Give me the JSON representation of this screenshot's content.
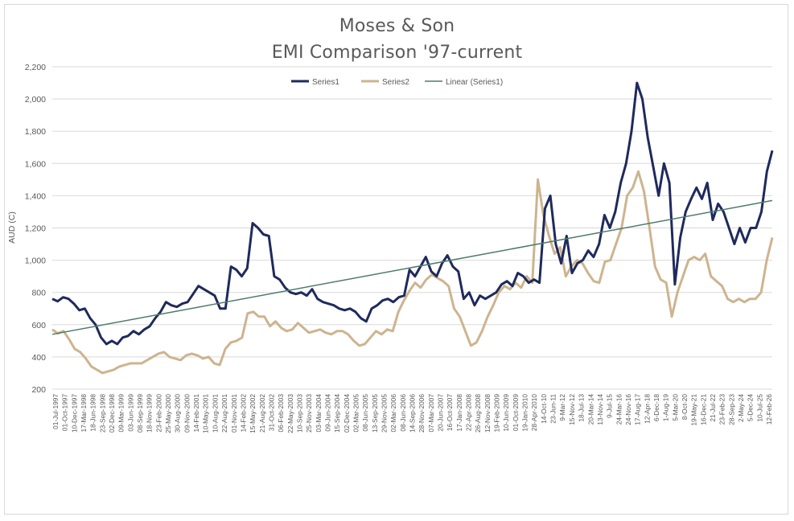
{
  "chart_data": {
    "type": "line",
    "title": "Moses & Son",
    "subtitle": "EMI Comparison '97-current",
    "ylabel": "AUD (C)",
    "xlabel": "",
    "ylim": [
      200,
      2200
    ],
    "yticks": [
      "200",
      "400",
      "600",
      "800",
      "1,000",
      "1,200",
      "1,400",
      "1,600",
      "1,800",
      "2,000",
      "2,200"
    ],
    "grid": true,
    "legend_position": "top",
    "colors": {
      "series1": "#1f2a5c",
      "series2": "#cdb48f",
      "linear": "#4e7b6a",
      "grid": "#d9d9d9",
      "text": "#595959"
    },
    "x_tick_labels": [
      "01-Jul-1997",
      "01-Oct-1997",
      "10-Dec-1997",
      "17-Mar-1998",
      "18-Jun-1998",
      "23-Sep-1998",
      "02-Dec-1998",
      "09-Mar-1999",
      "03-Jun-1999",
      "08-Sep-1999",
      "18-Nov-1999",
      "23-Feb-2000",
      "25-May-2000",
      "30-Aug-2000",
      "09-Nov-2000",
      "14-Feb-2001",
      "10-May-2001",
      "10-Aug-2001",
      "22-Aug-2001",
      "01-Nov-2001",
      "14-Feb-2002",
      "15-May-2002",
      "21-Aug-2002",
      "31-Oct-2002",
      "06-Feb-2003",
      "22-May-2003",
      "10-Sep-2003",
      "25-Nov-2003",
      "03-Mar-2004",
      "09-Jun-2004",
      "15-Sep-2004",
      "02-Dec-2004",
      "02-Mar-2005",
      "08-Jun-2005",
      "13-Sep-2005",
      "29-Nov-2005",
      "02-Mar-2006",
      "08-Jun-2006",
      "14-Sep-2006",
      "28-Nov-2006",
      "07-Mar-2007",
      "20-Jun-2007",
      "16-Oct-2007",
      "17-Jan-2008",
      "22-Apr-2008",
      "26-Aug-2008",
      "12-Nov-2008",
      "19-Feb-2009",
      "10-Jun-2009",
      "01-Oct-2009",
      "19-Jan-2010",
      "28-Apr-2010",
      "14-Oct-10",
      "23-Jun-11",
      "9-Mar-12",
      "15-Nov-12",
      "18-Jul-13",
      "20-Mar-14",
      "13-Nov-14",
      "9-Jul-15",
      "24-Mar-16",
      "24-Nov-16",
      "17-Aug-17",
      "12-Apr-18",
      "6-Dec-18",
      "1-Aug-19",
      "5-Mar-20",
      "8-Oct-20",
      "19-May-21",
      "16-Dec-21",
      "21-Jul-22",
      "23-Feb-23",
      "28-Sep-23",
      "2-May-24",
      "5-Dec-24",
      "10-Jul-25",
      "12-Feb-26"
    ],
    "series": [
      {
        "name": "Series1",
        "values": [
          760,
          745,
          770,
          760,
          730,
          690,
          700,
          640,
          600,
          520,
          480,
          500,
          480,
          520,
          530,
          560,
          540,
          570,
          590,
          640,
          680,
          740,
          720,
          710,
          730,
          740,
          790,
          840,
          820,
          800,
          780,
          700,
          700,
          960,
          940,
          900,
          950,
          1230,
          1200,
          1160,
          1150,
          900,
          880,
          830,
          800,
          790,
          800,
          780,
          820,
          760,
          740,
          730,
          720,
          700,
          690,
          700,
          680,
          640,
          620,
          700,
          720,
          750,
          760,
          740,
          770,
          780,
          940,
          900,
          960,
          1020,
          930,
          900,
          980,
          1030,
          960,
          930,
          760,
          800,
          720,
          780,
          760,
          780,
          800,
          850,
          870,
          840,
          920,
          900,
          860,
          880,
          860,
          1320,
          1400,
          1100,
          980,
          1150,
          920,
          980,
          1000,
          1060,
          1020,
          1100,
          1280,
          1200,
          1300,
          1480,
          1600,
          1800,
          2100,
          2000,
          1760,
          1580,
          1400,
          1600,
          1480,
          850,
          1140,
          1300,
          1380,
          1450,
          1380,
          1480,
          1250,
          1350,
          1300,
          1200,
          1100,
          1200,
          1110,
          1200,
          1200,
          1300,
          1550,
          1680
        ]
      },
      {
        "name": "Series2",
        "values": [
          570,
          545,
          560,
          510,
          450,
          430,
          390,
          340,
          320,
          300,
          310,
          320,
          340,
          350,
          360,
          360,
          360,
          380,
          400,
          420,
          430,
          400,
          390,
          380,
          410,
          420,
          410,
          390,
          400,
          360,
          350,
          450,
          490,
          500,
          520,
          670,
          680,
          650,
          650,
          590,
          620,
          580,
          560,
          570,
          610,
          580,
          550,
          560,
          570,
          550,
          540,
          560,
          560,
          540,
          500,
          470,
          480,
          520,
          560,
          540,
          570,
          560,
          680,
          750,
          810,
          860,
          830,
          880,
          910,
          890,
          870,
          840,
          700,
          650,
          560,
          470,
          490,
          560,
          650,
          720,
          800,
          840,
          820,
          860,
          830,
          900,
          860,
          1500,
          1280,
          1150,
          1040,
          1080,
          900,
          960,
          1000,
          980,
          920,
          870,
          860,
          990,
          1000,
          1100,
          1200,
          1400,
          1450,
          1550,
          1430,
          1200,
          960,
          880,
          860,
          650,
          800,
          900,
          1000,
          1020,
          1000,
          1040,
          900,
          870,
          840,
          760,
          740,
          760,
          740,
          760,
          760,
          800,
          1000,
          1140
        ]
      },
      {
        "name": "Linear (Series1)",
        "values": [
          540,
          1370
        ]
      }
    ]
  }
}
